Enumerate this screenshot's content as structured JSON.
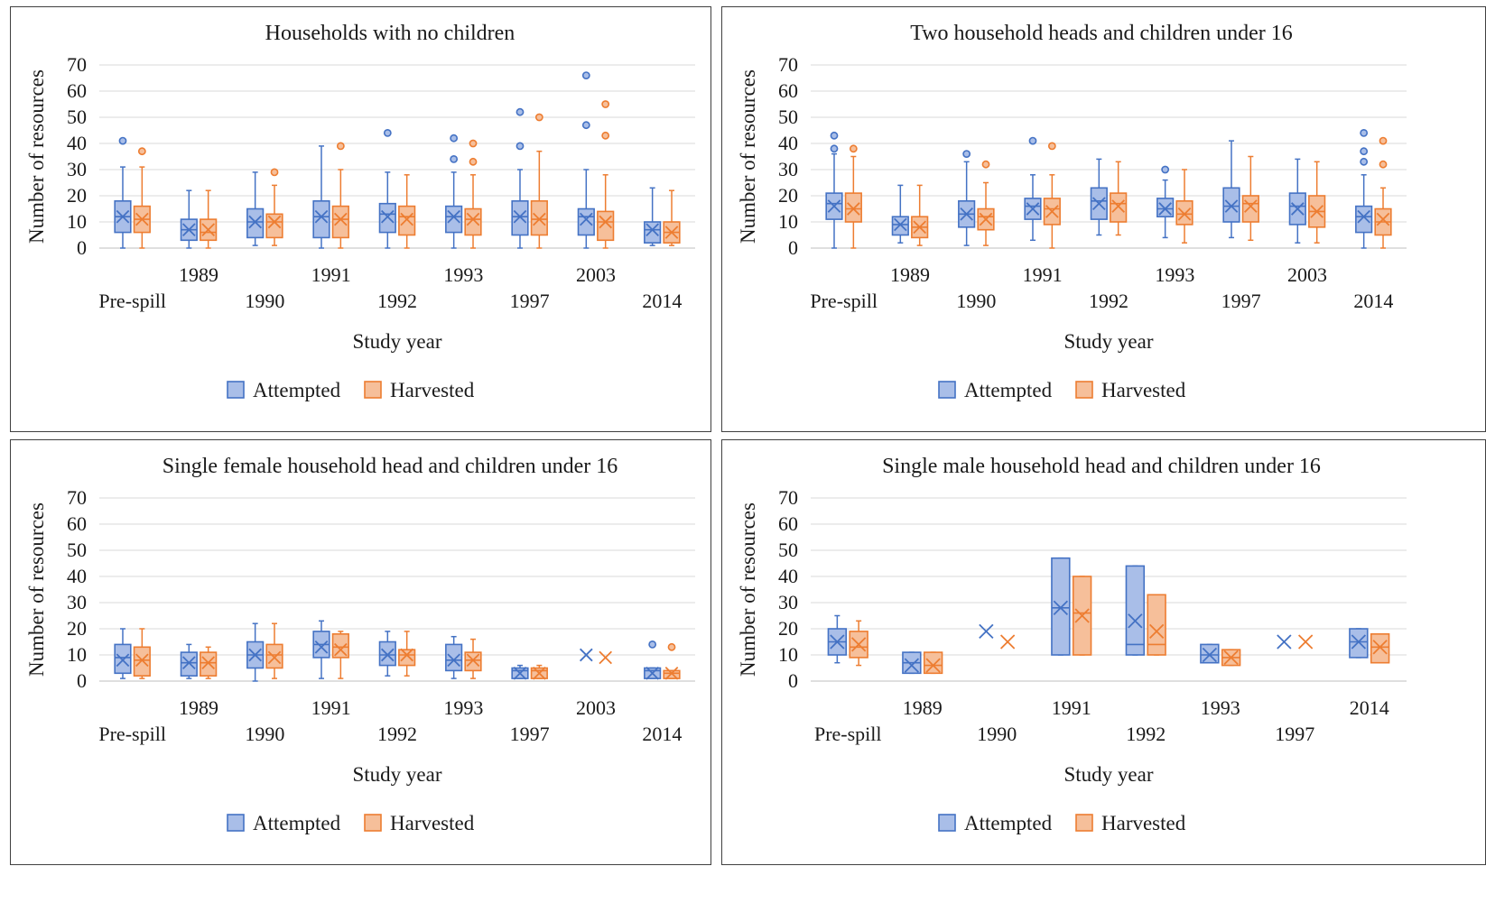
{
  "colors": {
    "attempted_stroke": "#4472C4",
    "attempted_fill": "#A9BEE8",
    "harvested_stroke": "#ED7D31",
    "harvested_fill": "#F6BF9A",
    "gridline": "#d9d9d9"
  },
  "chart_data": [
    {
      "type": "box",
      "title": "Households with no children",
      "xlabel": "Study year",
      "ylabel": "Number of resources",
      "ylim": [
        0,
        70
      ],
      "yticks": [
        0,
        10,
        20,
        30,
        40,
        50,
        60,
        70
      ],
      "grid": true,
      "legend_position": "bottom",
      "categories": [
        "Pre-spill",
        "1989",
        "1990",
        "1991",
        "1992",
        "1993",
        "1997",
        "2003",
        "2014"
      ],
      "series": [
        {
          "name": "Attempted",
          "boxes": [
            {
              "min": 0,
              "q1": 6,
              "median": 12,
              "q3": 18,
              "max": 31,
              "mean": 12,
              "outliers": [
                41
              ]
            },
            {
              "min": 0,
              "q1": 3,
              "median": 7,
              "q3": 11,
              "max": 22,
              "mean": 7,
              "outliers": []
            },
            {
              "min": 1,
              "q1": 4,
              "median": 10,
              "q3": 15,
              "max": 29,
              "mean": 10,
              "outliers": []
            },
            {
              "min": 0,
              "q1": 4,
              "median": 12,
              "q3": 18,
              "max": 39,
              "mean": 12,
              "outliers": []
            },
            {
              "min": 0,
              "q1": 6,
              "median": 13,
              "q3": 17,
              "max": 29,
              "mean": 12,
              "outliers": [
                44
              ]
            },
            {
              "min": 0,
              "q1": 6,
              "median": 12,
              "q3": 16,
              "max": 29,
              "mean": 12,
              "outliers": [
                34,
                42
              ]
            },
            {
              "min": 0,
              "q1": 5,
              "median": 12,
              "q3": 18,
              "max": 30,
              "mean": 12,
              "outliers": [
                39,
                52
              ]
            },
            {
              "min": 0,
              "q1": 5,
              "median": 12,
              "q3": 15,
              "max": 30,
              "mean": 11,
              "outliers": [
                47,
                66
              ]
            },
            {
              "min": 1,
              "q1": 2,
              "median": 7,
              "q3": 10,
              "max": 23,
              "mean": 7,
              "outliers": []
            }
          ]
        },
        {
          "name": "Harvested",
          "boxes": [
            {
              "min": 0,
              "q1": 6,
              "median": 11,
              "q3": 16,
              "max": 31,
              "mean": 11,
              "outliers": [
                37
              ]
            },
            {
              "min": 0,
              "q1": 3,
              "median": 6,
              "q3": 11,
              "max": 22,
              "mean": 7,
              "outliers": []
            },
            {
              "min": 1,
              "q1": 4,
              "median": 10,
              "q3": 13,
              "max": 24,
              "mean": 10,
              "outliers": [
                29
              ]
            },
            {
              "min": 0,
              "q1": 4,
              "median": 11,
              "q3": 16,
              "max": 30,
              "mean": 11,
              "outliers": [
                39
              ]
            },
            {
              "min": 0,
              "q1": 5,
              "median": 12,
              "q3": 16,
              "max": 28,
              "mean": 11,
              "outliers": []
            },
            {
              "min": 0,
              "q1": 5,
              "median": 11,
              "q3": 15,
              "max": 28,
              "mean": 11,
              "outliers": [
                33,
                40
              ]
            },
            {
              "min": 0,
              "q1": 5,
              "median": 11,
              "q3": 18,
              "max": 37,
              "mean": 11,
              "outliers": [
                50
              ]
            },
            {
              "min": 0,
              "q1": 3,
              "median": 10,
              "q3": 14,
              "max": 28,
              "mean": 10,
              "outliers": [
                43,
                55
              ]
            },
            {
              "min": 1,
              "q1": 2,
              "median": 6,
              "q3": 10,
              "max": 22,
              "mean": 6,
              "outliers": []
            }
          ]
        }
      ]
    },
    {
      "type": "box",
      "title": "Two household heads and children under 16",
      "xlabel": "Study year",
      "ylabel": "Number of resources",
      "ylim": [
        0,
        70
      ],
      "yticks": [
        0,
        10,
        20,
        30,
        40,
        50,
        60,
        70
      ],
      "grid": true,
      "legend_position": "bottom",
      "categories": [
        "Pre-spill",
        "1989",
        "1990",
        "1991",
        "1992",
        "1993",
        "1997",
        "2003",
        "2014"
      ],
      "series": [
        {
          "name": "Attempted",
          "boxes": [
            {
              "min": 0,
              "q1": 11,
              "median": 17,
              "q3": 21,
              "max": 36,
              "mean": 16,
              "outliers": [
                38,
                43
              ]
            },
            {
              "min": 2,
              "q1": 5,
              "median": 9,
              "q3": 12,
              "max": 24,
              "mean": 9,
              "outliers": []
            },
            {
              "min": 1,
              "q1": 8,
              "median": 13,
              "q3": 18,
              "max": 33,
              "mean": 13,
              "outliers": [
                36
              ]
            },
            {
              "min": 3,
              "q1": 11,
              "median": 16,
              "q3": 19,
              "max": 28,
              "mean": 15,
              "outliers": [
                41
              ]
            },
            {
              "min": 5,
              "q1": 11,
              "median": 18,
              "q3": 23,
              "max": 34,
              "mean": 17,
              "outliers": []
            },
            {
              "min": 4,
              "q1": 12,
              "median": 15,
              "q3": 19,
              "max": 26,
              "mean": 15,
              "outliers": [
                30
              ]
            },
            {
              "min": 4,
              "q1": 10,
              "median": 16,
              "q3": 23,
              "max": 41,
              "mean": 16,
              "outliers": []
            },
            {
              "min": 2,
              "q1": 9,
              "median": 16,
              "q3": 21,
              "max": 34,
              "mean": 15,
              "outliers": []
            },
            {
              "min": 0,
              "q1": 6,
              "median": 12,
              "q3": 16,
              "max": 28,
              "mean": 12,
              "outliers": [
                33,
                37,
                44
              ]
            }
          ]
        },
        {
          "name": "Harvested",
          "boxes": [
            {
              "min": 0,
              "q1": 10,
              "median": 15,
              "q3": 21,
              "max": 35,
              "mean": 15,
              "outliers": [
                38
              ]
            },
            {
              "min": 1,
              "q1": 4,
              "median": 8,
              "q3": 12,
              "max": 24,
              "mean": 8,
              "outliers": []
            },
            {
              "min": 1,
              "q1": 7,
              "median": 12,
              "q3": 15,
              "max": 25,
              "mean": 11,
              "outliers": [
                32
              ]
            },
            {
              "min": 0,
              "q1": 9,
              "median": 15,
              "q3": 19,
              "max": 28,
              "mean": 14,
              "outliers": [
                39
              ]
            },
            {
              "min": 5,
              "q1": 10,
              "median": 17,
              "q3": 21,
              "max": 33,
              "mean": 16,
              "outliers": []
            },
            {
              "min": 2,
              "q1": 9,
              "median": 13,
              "q3": 18,
              "max": 30,
              "mean": 13,
              "outliers": []
            },
            {
              "min": 3,
              "q1": 10,
              "median": 17,
              "q3": 20,
              "max": 35,
              "mean": 16,
              "outliers": []
            },
            {
              "min": 2,
              "q1": 8,
              "median": 14,
              "q3": 20,
              "max": 33,
              "mean": 14,
              "outliers": []
            },
            {
              "min": 0,
              "q1": 5,
              "median": 10,
              "q3": 15,
              "max": 23,
              "mean": 11,
              "outliers": [
                32,
                41
              ]
            }
          ]
        }
      ]
    },
    {
      "type": "box",
      "title": "Single female household head and children under 16",
      "xlabel": "Study year",
      "ylabel": "Number of resources",
      "ylim": [
        0,
        70
      ],
      "yticks": [
        0,
        10,
        20,
        30,
        40,
        50,
        60,
        70
      ],
      "grid": true,
      "legend_position": "bottom",
      "categories": [
        "Pre-spill",
        "1989",
        "1990",
        "1991",
        "1992",
        "1993",
        "1997",
        "2003",
        "2014"
      ],
      "series": [
        {
          "name": "Attempted",
          "boxes": [
            {
              "min": 1,
              "q1": 3,
              "median": 9,
              "q3": 14,
              "max": 20,
              "mean": 8,
              "outliers": []
            },
            {
              "min": 1,
              "q1": 2,
              "median": 7,
              "q3": 11,
              "max": 14,
              "mean": 7,
              "outliers": []
            },
            {
              "min": 0,
              "q1": 5,
              "median": 10,
              "q3": 15,
              "max": 22,
              "mean": 10,
              "outliers": []
            },
            {
              "min": 1,
              "q1": 9,
              "median": 14,
              "q3": 19,
              "max": 23,
              "mean": 13,
              "outliers": []
            },
            {
              "min": 2,
              "q1": 6,
              "median": 10,
              "q3": 15,
              "max": 19,
              "mean": 10,
              "outliers": []
            },
            {
              "min": 1,
              "q1": 4,
              "median": 8,
              "q3": 14,
              "max": 17,
              "mean": 8,
              "outliers": []
            },
            {
              "min": 1,
              "q1": 1,
              "median": 4,
              "q3": 5,
              "max": 6,
              "mean": 3,
              "outliers": []
            },
            {
              "min": null,
              "q1": null,
              "median": null,
              "q3": null,
              "max": null,
              "mean": 10,
              "outliers": []
            },
            {
              "min": 1,
              "q1": 1,
              "median": 4,
              "q3": 5,
              "max": 5,
              "mean": 3,
              "outliers": [
                14
              ]
            }
          ]
        },
        {
          "name": "Harvested",
          "boxes": [
            {
              "min": 1,
              "q1": 2,
              "median": 8,
              "q3": 13,
              "max": 20,
              "mean": 8,
              "outliers": []
            },
            {
              "min": 1,
              "q1": 2,
              "median": 7,
              "q3": 11,
              "max": 13,
              "mean": 7,
              "outliers": []
            },
            {
              "min": 1,
              "q1": 5,
              "median": 10,
              "q3": 14,
              "max": 22,
              "mean": 9,
              "outliers": []
            },
            {
              "min": 1,
              "q1": 9,
              "median": 13,
              "q3": 18,
              "max": 19,
              "mean": 12,
              "outliers": []
            },
            {
              "min": 2,
              "q1": 6,
              "median": 10,
              "q3": 12,
              "max": 19,
              "mean": 10,
              "outliers": []
            },
            {
              "min": 1,
              "q1": 4,
              "median": 8,
              "q3": 11,
              "max": 16,
              "mean": 8,
              "outliers": []
            },
            {
              "min": 1,
              "q1": 1,
              "median": 4,
              "q3": 5,
              "max": 6,
              "mean": 3,
              "outliers": []
            },
            {
              "min": null,
              "q1": null,
              "median": null,
              "q3": null,
              "max": null,
              "mean": 9,
              "outliers": []
            },
            {
              "min": 1,
              "q1": 1,
              "median": 3,
              "q3": 4,
              "max": 4,
              "mean": 3,
              "outliers": [
                13
              ]
            }
          ]
        }
      ]
    },
    {
      "type": "box",
      "title": "Single male household head and children under 16",
      "xlabel": "Study year",
      "ylabel": "Number of resources",
      "ylim": [
        0,
        70
      ],
      "yticks": [
        0,
        10,
        20,
        30,
        40,
        50,
        60,
        70
      ],
      "grid": true,
      "legend_position": "bottom",
      "categories": [
        "Pre-spill",
        "1989",
        "1990",
        "1991",
        "1992",
        "1993",
        "1997",
        "2014"
      ],
      "series": [
        {
          "name": "Attempted",
          "boxes": [
            {
              "min": 7,
              "q1": 10,
              "median": 15,
              "q3": 20,
              "max": 25,
              "mean": 15,
              "outliers": []
            },
            {
              "min": 3,
              "q1": 3,
              "median": 7,
              "q3": 11,
              "max": 11,
              "mean": 6,
              "outliers": []
            },
            {
              "min": null,
              "q1": null,
              "median": null,
              "q3": null,
              "max": null,
              "mean": 19,
              "outliers": []
            },
            {
              "min": 10,
              "q1": 10,
              "median": 28,
              "q3": 47,
              "max": 47,
              "mean": 28,
              "outliers": []
            },
            {
              "min": 10,
              "q1": 10,
              "median": 14,
              "q3": 44,
              "max": 44,
              "mean": 23,
              "outliers": []
            },
            {
              "min": 7,
              "q1": 7,
              "median": 10,
              "q3": 14,
              "max": 14,
              "mean": 10,
              "outliers": []
            },
            {
              "min": null,
              "q1": null,
              "median": null,
              "q3": null,
              "max": null,
              "mean": 15,
              "outliers": []
            },
            {
              "min": 9,
              "q1": 9,
              "median": 15,
              "q3": 20,
              "max": 20,
              "mean": 15,
              "outliers": []
            }
          ]
        },
        {
          "name": "Harvested",
          "boxes": [
            {
              "min": 6,
              "q1": 9,
              "median": 13,
              "q3": 19,
              "max": 23,
              "mean": 14,
              "outliers": []
            },
            {
              "min": 3,
              "q1": 3,
              "median": 6,
              "q3": 11,
              "max": 11,
              "mean": 6,
              "outliers": []
            },
            {
              "min": null,
              "q1": null,
              "median": null,
              "q3": null,
              "max": null,
              "mean": 15,
              "outliers": []
            },
            {
              "min": 10,
              "q1": 10,
              "median": 26,
              "q3": 40,
              "max": 40,
              "mean": 25,
              "outliers": []
            },
            {
              "min": 10,
              "q1": 10,
              "median": 14,
              "q3": 33,
              "max": 33,
              "mean": 19,
              "outliers": []
            },
            {
              "min": 6,
              "q1": 6,
              "median": 9,
              "q3": 12,
              "max": 12,
              "mean": 9,
              "outliers": []
            },
            {
              "min": null,
              "q1": null,
              "median": null,
              "q3": null,
              "max": null,
              "mean": 15,
              "outliers": []
            },
            {
              "min": 7,
              "q1": 7,
              "median": 13,
              "q3": 18,
              "max": 18,
              "mean": 13,
              "outliers": []
            }
          ]
        }
      ]
    }
  ]
}
